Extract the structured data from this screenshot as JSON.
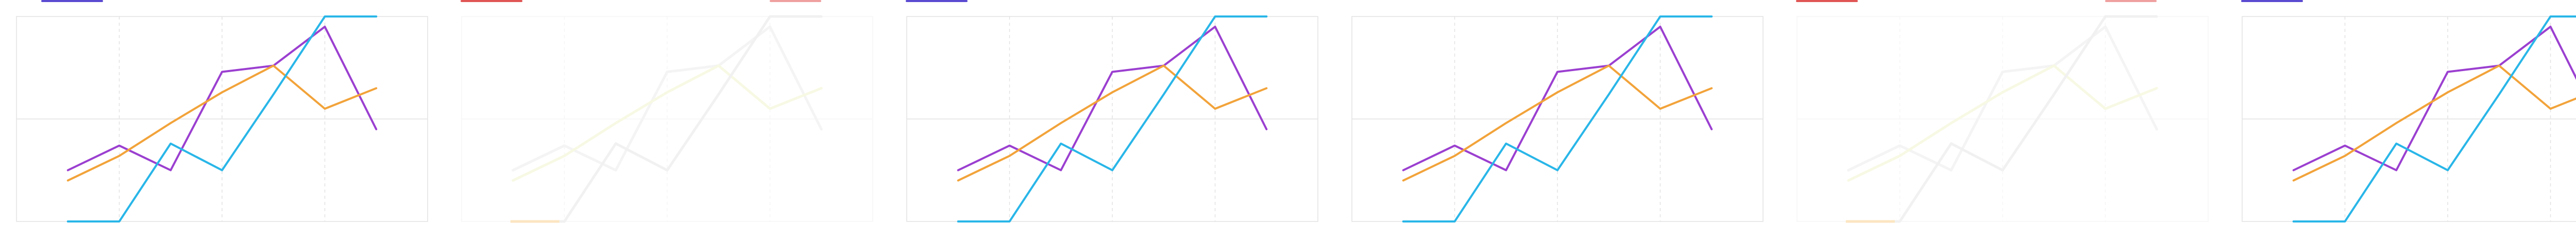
{
  "chart_data": {
    "type": "line",
    "title": "",
    "xlabel": "",
    "ylabel": "",
    "x": [
      1,
      2,
      3,
      4,
      5,
      6,
      7
    ],
    "xlim": [
      0,
      8
    ],
    "ylim": [
      0,
      100
    ],
    "grid": true,
    "series": [
      {
        "color": "#9b3fd0",
        "values": [
          25,
          37,
          25,
          73,
          76,
          95,
          45
        ]
      },
      {
        "color": "#f2a33a",
        "values": [
          20,
          32,
          48,
          63,
          76,
          55,
          65
        ]
      },
      {
        "color": "#29b6e8",
        "values": [
          0,
          0,
          38,
          25,
          62,
          100,
          100
        ]
      }
    ],
    "panels": [
      {
        "faded": false
      },
      {
        "faded": true
      },
      {
        "faded": false
      },
      {
        "faded": false
      },
      {
        "faded": true
      },
      {
        "faded": false
      }
    ],
    "colors": {
      "grid": "#e2e2e2",
      "legend_red": "#e05555",
      "legend_blue": "#6a5acd",
      "faded_green": "#e8eaa0",
      "faded_orange": "#f5a623"
    }
  }
}
